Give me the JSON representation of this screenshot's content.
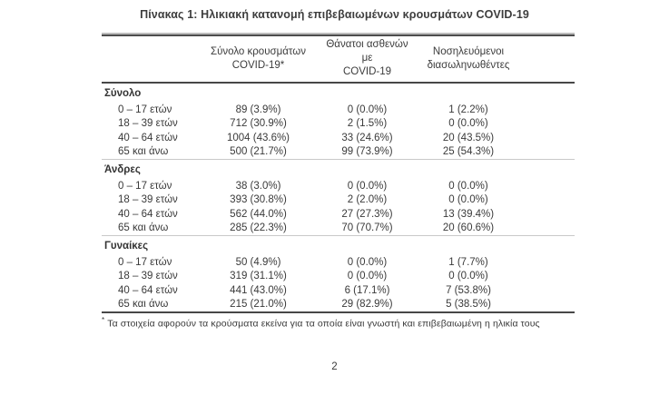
{
  "page": {
    "title": "Πίνακας 1: Ηλικιακή κατανομή επιβεβαιωμένων κρουσμάτων COVID-19",
    "page_number": "2",
    "footnote_marker": "*",
    "footnote_text": "Τα στοιχεία αφορούν τα κρούσματα εκείνα για τα οποία είναι γνωστή και επιβεβαιωμένη η ηλικία τους"
  },
  "table": {
    "columns": [
      {
        "line1": "Σύνολο κρουσμάτων",
        "line2": "COVID-19*"
      },
      {
        "line1": "Θάνατοι ασθενών με",
        "line2": "COVID-19"
      },
      {
        "line1": "Νοσηλευόμενοι",
        "line2": "διασωληνωθέντες"
      }
    ],
    "sections": [
      {
        "label": "Σύνολο",
        "rows": [
          {
            "label": "0 – 17 ετών",
            "values": [
              "89 (3.9%)",
              "0 (0.0%)",
              "1 (2.2%)"
            ]
          },
          {
            "label": "18 – 39 ετών",
            "values": [
              "712 (30.9%)",
              "2 (1.5%)",
              "0 (0.0%)"
            ]
          },
          {
            "label": "40 – 64 ετών",
            "values": [
              "1004 (43.6%)",
              "33 (24.6%)",
              "20 (43.5%)"
            ]
          },
          {
            "label": "65 και άνω",
            "values": [
              "500 (21.7%)",
              "99 (73.9%)",
              "25 (54.3%)"
            ]
          }
        ]
      },
      {
        "label": "Άνδρες",
        "rows": [
          {
            "label": "0 – 17 ετών",
            "values": [
              "38 (3.0%)",
              "0 (0.0%)",
              "0 (0.0%)"
            ]
          },
          {
            "label": "18 – 39 ετών",
            "values": [
              "393 (30.8%)",
              "2 (2.0%)",
              "0 (0.0%)"
            ]
          },
          {
            "label": "40 – 64 ετών",
            "values": [
              "562 (44.0%)",
              "27 (27.3%)",
              "13 (39.4%)"
            ]
          },
          {
            "label": "65 και άνω",
            "values": [
              "285 (22.3%)",
              "70 (70.7%)",
              "20 (60.6%)"
            ]
          }
        ]
      },
      {
        "label": "Γυναίκες",
        "rows": [
          {
            "label": "0 – 17 ετών",
            "values": [
              "50 (4.9%)",
              "0 (0.0%)",
              "1 (7.7%)"
            ]
          },
          {
            "label": "18 – 39 ετών",
            "values": [
              "319 (31.1%)",
              "0 (0.0%)",
              "0 (0.0%)"
            ]
          },
          {
            "label": "40 – 64 ετών",
            "values": [
              "441 (43.0%)",
              "6 (17.1%)",
              "7 (53.8%)"
            ]
          },
          {
            "label": "65 και άνω",
            "values": [
              "215 (21.0%)",
              "29 (82.9%)",
              "5 (38.5%)"
            ]
          }
        ]
      }
    ]
  }
}
